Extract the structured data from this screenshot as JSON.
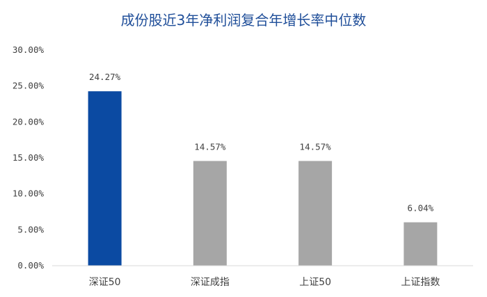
{
  "chart_data": {
    "type": "bar",
    "title": "成份股近3年净利润复合年增长率中位数",
    "categories": [
      "深证50",
      "深证成指",
      "上证50",
      "上证指数"
    ],
    "values": [
      24.27,
      14.57,
      14.57,
      6.04
    ],
    "data_labels": [
      "24.27%",
      "14.57%",
      "14.57%",
      "6.04%"
    ],
    "bar_colors": [
      "#0b4aa2",
      "#a6a6a6",
      "#a6a6a6",
      "#a6a6a6"
    ],
    "ylim": [
      0,
      30
    ],
    "yticks": [
      0,
      5,
      10,
      15,
      20,
      25,
      30
    ],
    "ytick_labels": [
      "0.00%",
      "5.00%",
      "10.00%",
      "15.00%",
      "20.00%",
      "25.00%",
      "30.00%"
    ],
    "xlabel": "",
    "ylabel": "",
    "grid": false,
    "legend": "none"
  }
}
